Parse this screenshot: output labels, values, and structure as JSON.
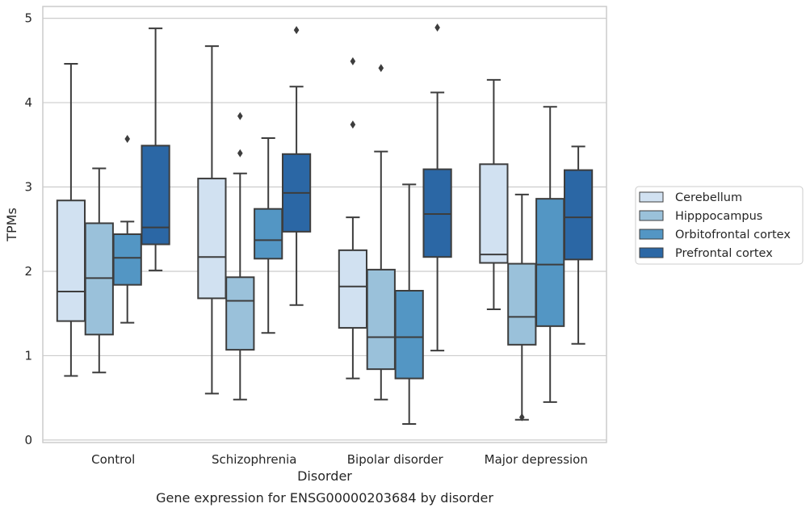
{
  "chart_data": {
    "type": "box",
    "xlabel": "Disorder",
    "ylabel": "TPMs",
    "caption": "Gene expression for ENSG00000203684 by disorder",
    "ylim": [
      -0.03,
      5.14
    ],
    "yticks": [
      0,
      1,
      2,
      3,
      4,
      5
    ],
    "grid": "horizontal",
    "legend_position": "right",
    "categories": [
      "Control",
      "Schizophrenia",
      "Bipolar disorder",
      "Major depression"
    ],
    "series": [
      {
        "name": "Cerebellum",
        "color": "#d1e1f1",
        "boxes": [
          {
            "whislo": 0.76,
            "q1": 1.41,
            "med": 1.76,
            "q3": 2.84,
            "whishi": 4.46,
            "fliers": []
          },
          {
            "whislo": 0.55,
            "q1": 1.68,
            "med": 2.17,
            "q3": 3.1,
            "whishi": 4.67,
            "fliers": []
          },
          {
            "whislo": 0.73,
            "q1": 1.33,
            "med": 1.82,
            "q3": 2.25,
            "whishi": 2.64,
            "fliers": [
              3.74,
              4.49
            ]
          },
          {
            "whislo": 1.55,
            "q1": 2.1,
            "med": 2.2,
            "q3": 3.27,
            "whishi": 4.27,
            "fliers": []
          }
        ]
      },
      {
        "name": "Hipppocampus",
        "color": "#9ac1da",
        "boxes": [
          {
            "whislo": 0.8,
            "q1": 1.25,
            "med": 1.92,
            "q3": 2.57,
            "whishi": 3.22,
            "fliers": []
          },
          {
            "whislo": 0.48,
            "q1": 1.07,
            "med": 1.65,
            "q3": 1.93,
            "whishi": 3.16,
            "fliers": [
              3.4,
              3.84
            ]
          },
          {
            "whislo": 0.48,
            "q1": 0.84,
            "med": 1.22,
            "q3": 2.02,
            "whishi": 3.42,
            "fliers": [
              4.41
            ]
          },
          {
            "whislo": 0.24,
            "q1": 1.13,
            "med": 1.46,
            "q3": 2.09,
            "whishi": 2.91,
            "fliers": [
              0.27
            ]
          }
        ]
      },
      {
        "name": "Orbitofrontal cortex",
        "color": "#5396c4",
        "boxes": [
          {
            "whislo": 1.39,
            "q1": 1.84,
            "med": 2.16,
            "q3": 2.44,
            "whishi": 2.59,
            "fliers": [
              3.57
            ]
          },
          {
            "whislo": 1.27,
            "q1": 2.15,
            "med": 2.37,
            "q3": 2.74,
            "whishi": 3.58,
            "fliers": []
          },
          {
            "whislo": 0.19,
            "q1": 0.73,
            "med": 1.22,
            "q3": 1.77,
            "whishi": 3.03,
            "fliers": []
          },
          {
            "whislo": 0.45,
            "q1": 1.35,
            "med": 2.08,
            "q3": 2.86,
            "whishi": 3.95,
            "fliers": []
          }
        ]
      },
      {
        "name": "Prefrontal cortex",
        "color": "#2b67a5",
        "boxes": [
          {
            "whislo": 2.01,
            "q1": 2.32,
            "med": 2.52,
            "q3": 3.49,
            "whishi": 4.88,
            "fliers": []
          },
          {
            "whislo": 1.6,
            "q1": 2.47,
            "med": 2.93,
            "q3": 3.39,
            "whishi": 4.19,
            "fliers": [
              4.86
            ]
          },
          {
            "whislo": 1.06,
            "q1": 2.17,
            "med": 2.68,
            "q3": 3.21,
            "whishi": 4.12,
            "fliers": [
              4.89
            ]
          },
          {
            "whislo": 1.14,
            "q1": 2.14,
            "med": 2.64,
            "q3": 3.2,
            "whishi": 3.48,
            "fliers": []
          }
        ]
      }
    ]
  }
}
